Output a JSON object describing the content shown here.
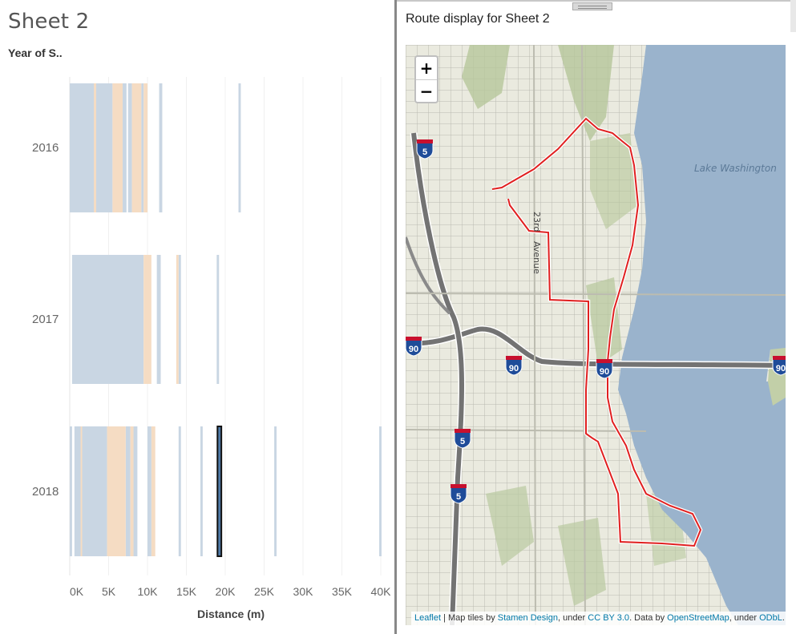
{
  "sheet": {
    "title": "Sheet 2",
    "row_header": "Year of S..",
    "years": [
      "2016",
      "2017",
      "2018"
    ]
  },
  "colors": {
    "blue_bar": "#c9d6e3",
    "orange_bar": "#f5dcc3",
    "highlight_bar": "#111111",
    "highlight_fill": "#4e79a7",
    "grid": "#f0f0f0",
    "route": "#e02020",
    "water": "#9ab3cc"
  },
  "chart_data": {
    "type": "bar",
    "title": "",
    "xlabel": "Distance (m)",
    "ylabel": "Year of S..",
    "x_tick_labels": [
      "0K",
      "5K",
      "10K",
      "15K",
      "20K",
      "25K",
      "30K",
      "35K",
      "40K"
    ],
    "xlim": [
      0,
      42000
    ],
    "categories": [
      "2016",
      "2017",
      "2018"
    ],
    "series": [
      {
        "year": "2016",
        "blue_spans": [
          [
            0,
            5500
          ],
          [
            6800,
            7300
          ],
          [
            7500,
            8000
          ],
          [
            9200,
            9500
          ],
          [
            11500,
            11900
          ],
          [
            21700,
            22000
          ]
        ],
        "orange_spans": [
          [
            3100,
            3400
          ],
          [
            5500,
            6800
          ],
          [
            8000,
            9200
          ],
          [
            9500,
            10000
          ]
        ]
      },
      {
        "year": "2017",
        "blue_spans": [
          [
            300,
            9500
          ],
          [
            11200,
            11700
          ],
          [
            14000,
            14300
          ],
          [
            18900,
            19200
          ]
        ],
        "orange_spans": [
          [
            9500,
            10500
          ],
          [
            13700,
            14000
          ]
        ]
      },
      {
        "year": "2018",
        "blue_spans": [
          [
            0,
            300
          ],
          [
            600,
            4800
          ],
          [
            7200,
            7800
          ],
          [
            8200,
            8700
          ],
          [
            10000,
            10500
          ],
          [
            14000,
            14300
          ],
          [
            16800,
            17100
          ],
          [
            26300,
            26600
          ],
          [
            39800,
            40100
          ]
        ],
        "orange_spans": [
          [
            1400,
            1600
          ],
          [
            4800,
            7200
          ],
          [
            7800,
            8200
          ],
          [
            10500,
            11000
          ]
        ],
        "highlight": [
          19000,
          19500
        ]
      }
    ]
  },
  "extension": {
    "title": "Route display for Sheet 2"
  },
  "map": {
    "zoom_in": "+",
    "zoom_out": "−",
    "lake_label": "Lake Washington",
    "street_label_1": "23rd",
    "street_label_2": "Avenue",
    "shields": [
      {
        "id": "i5-top",
        "num": "5"
      },
      {
        "id": "i90-left",
        "num": "90"
      },
      {
        "id": "i90-mid",
        "num": "90"
      },
      {
        "id": "i90-bridge",
        "num": "90"
      },
      {
        "id": "i90-right",
        "num": "90"
      },
      {
        "id": "i5-mid",
        "num": "5"
      },
      {
        "id": "i5-low",
        "num": "5"
      }
    ],
    "attribution": {
      "leaflet": "Leaflet",
      "sep": " | Map tiles by ",
      "stamen": "Stamen Design",
      "under1": ", under ",
      "ccby": "CC BY 3.0",
      "data": ". Data by ",
      "osm": "OpenStreetMap",
      "under2": ", under ",
      "odbl": "ODbL",
      "end": "."
    }
  }
}
